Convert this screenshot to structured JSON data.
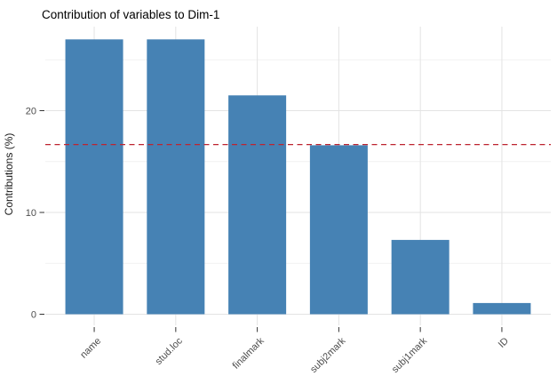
{
  "chart_data": {
    "type": "bar",
    "title": "Contribution of variables to Dim-1",
    "ylabel": "Contributions (%)",
    "xlabel": "",
    "categories": [
      "name",
      "stud.loc",
      "finalmark",
      "subj2mark",
      "subj1mark",
      "ID"
    ],
    "values": [
      27.0,
      27.0,
      21.5,
      16.6,
      7.3,
      1.1
    ],
    "bar_color": "#4682B4",
    "reference_line": {
      "value": 16.67,
      "color": "#BE2430",
      "style": "dashed"
    },
    "yticks": [
      0,
      10,
      20
    ],
    "yticks_minor": [
      5,
      15,
      25
    ],
    "ylim": [
      0,
      28.25
    ],
    "x_tick_rotation": -45,
    "grid": "on",
    "legend": "none",
    "colors": {
      "grid_major": "#E3E3E3",
      "grid_minor": "#F1F1F1",
      "axis_text": "#4D4D4D",
      "tick_mark": "#333333",
      "title_text": "#000000",
      "background": "#FFFFFF"
    }
  }
}
